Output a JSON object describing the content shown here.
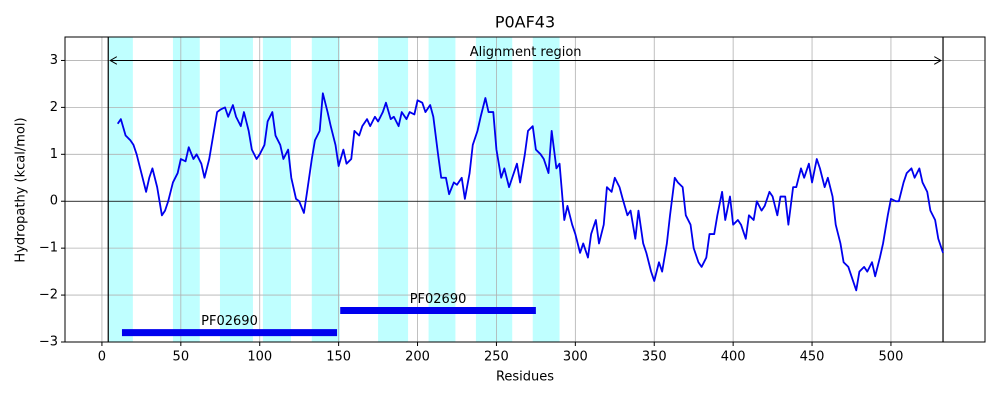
{
  "chart_data": {
    "type": "line",
    "title": "P0AF43",
    "x_label": "Residues",
    "y_label": "Hydropathy (kcal/mol)",
    "color": "#0000ee",
    "grid": true,
    "band_color": "#bfffff",
    "xlim": [
      -23.4,
      559.6
    ],
    "ylim": [
      -3,
      3.5
    ],
    "xticks": [
      0,
      50,
      100,
      150,
      200,
      250,
      300,
      350,
      400,
      450,
      500
    ],
    "yticks": [
      {
        "value": -3,
        "label": "−3"
      },
      {
        "value": -2,
        "label": "−2"
      },
      {
        "value": -1,
        "label": "−1"
      },
      0,
      1,
      2,
      3
    ],
    "regions": [
      [
        3.8,
        19.6
      ],
      [
        45,
        62
      ],
      [
        74.8,
        95.7
      ],
      [
        102,
        119.8
      ],
      [
        133,
        150.8
      ],
      [
        175,
        194
      ],
      [
        207,
        224
      ],
      [
        237,
        260
      ],
      [
        273,
        290
      ]
    ],
    "alignment": {
      "label": "Alignment region",
      "start": 4,
      "end": 533,
      "y": 3
    },
    "domains": [
      {
        "label": "PF02690",
        "start": 12.7,
        "end": 149,
        "y": -2.8
      },
      {
        "label": "PF02690",
        "start": 151,
        "end": 275,
        "y": -2.33
      }
    ],
    "x": [
      10,
      12,
      15,
      18,
      20,
      22,
      25,
      28,
      30,
      32,
      35,
      38,
      40,
      42,
      45,
      48,
      50,
      53,
      55,
      58,
      60,
      63,
      65,
      68,
      70,
      73,
      75,
      78,
      80,
      83,
      85,
      88,
      90,
      93,
      95,
      98,
      100,
      103,
      105,
      108,
      110,
      113,
      115,
      118,
      120,
      123,
      125,
      128,
      130,
      133,
      135,
      138,
      140,
      143,
      145,
      148,
      150,
      153,
      155,
      158,
      160,
      163,
      165,
      168,
      170,
      173,
      175,
      178,
      180,
      183,
      185,
      188,
      190,
      193,
      195,
      198,
      200,
      203,
      205,
      208,
      210,
      213,
      215,
      218,
      220,
      223,
      225,
      228,
      230,
      233,
      235,
      238,
      240,
      243,
      245,
      248,
      250,
      253,
      255,
      258,
      260,
      263,
      265,
      268,
      270,
      273,
      275,
      278,
      280,
      283,
      285,
      288,
      290,
      293,
      295,
      298,
      300,
      303,
      305,
      308,
      310,
      313,
      315,
      318,
      320,
      323,
      325,
      328,
      330,
      333,
      335,
      338,
      340,
      343,
      345,
      348,
      350,
      353,
      355,
      358,
      360,
      363,
      365,
      368,
      370,
      373,
      375,
      378,
      380,
      383,
      385,
      388,
      390,
      393,
      395,
      398,
      400,
      403,
      405,
      408,
      410,
      413,
      415,
      418,
      420,
      423,
      425,
      428,
      430,
      433,
      435,
      438,
      440,
      443,
      445,
      448,
      450,
      453,
      455,
      458,
      460,
      463,
      465,
      468,
      470,
      473,
      475,
      478,
      480,
      483,
      485,
      488,
      490,
      493,
      495,
      498,
      500,
      503,
      505,
      508,
      510,
      513,
      515,
      518,
      520,
      523,
      525,
      528,
      530,
      533
    ],
    "values": [
      1.65,
      1.75,
      1.4,
      1.3,
      1.2,
      1.0,
      0.6,
      0.2,
      0.5,
      0.7,
      0.3,
      -0.3,
      -0.2,
      0,
      0.4,
      0.6,
      0.9,
      0.85,
      1.15,
      0.9,
      1.0,
      0.8,
      0.5,
      0.9,
      1.3,
      1.9,
      1.95,
      2.0,
      1.8,
      2.05,
      1.8,
      1.6,
      1.9,
      1.5,
      1.1,
      0.9,
      1.0,
      1.2,
      1.7,
      1.9,
      1.4,
      1.2,
      0.9,
      1.1,
      0.5,
      0.05,
      0,
      -0.25,
      0.2,
      0.9,
      1.3,
      1.5,
      2.3,
      1.9,
      1.6,
      1.2,
      0.75,
      1.1,
      0.8,
      0.9,
      1.5,
      1.4,
      1.6,
      1.75,
      1.6,
      1.8,
      1.7,
      1.9,
      2.1,
      1.75,
      1.8,
      1.6,
      1.9,
      1.75,
      1.9,
      1.85,
      2.15,
      2.1,
      1.9,
      2.05,
      1.8,
      1.0,
      0.5,
      0.5,
      0.15,
      0.4,
      0.35,
      0.5,
      0.05,
      0.6,
      1.2,
      1.5,
      1.8,
      2.2,
      1.9,
      1.9,
      1.1,
      0.5,
      0.7,
      0.3,
      0.5,
      0.8,
      0.4,
      1.0,
      1.5,
      1.6,
      1.1,
      1.0,
      0.9,
      0.6,
      1.5,
      0.7,
      0.8,
      -0.4,
      -0.1,
      -0.5,
      -0.7,
      -1.1,
      -0.9,
      -1.2,
      -0.7,
      -0.4,
      -0.9,
      -0.5,
      0.3,
      0.2,
      0.5,
      0.3,
      0.05,
      -0.3,
      -0.2,
      -0.8,
      -0.2,
      -0.9,
      -1.1,
      -1.5,
      -1.7,
      -1.3,
      -1.5,
      -0.9,
      -0.3,
      0.5,
      0.4,
      0.3,
      -0.3,
      -0.5,
      -1.0,
      -1.3,
      -1.4,
      -1.2,
      -0.7,
      -0.7,
      -0.3,
      0.2,
      -0.4,
      0.1,
      -0.5,
      -0.4,
      -0.5,
      -0.8,
      -0.3,
      -0.4,
      0,
      -0.2,
      -0.1,
      0.2,
      0.1,
      -0.3,
      0.1,
      0.1,
      -0.5,
      0.3,
      0.3,
      0.7,
      0.5,
      0.8,
      0.4,
      0.9,
      0.7,
      0.3,
      0.5,
      0.1,
      -0.5,
      -0.9,
      -1.3,
      -1.4,
      -1.6,
      -1.9,
      -1.5,
      -1.4,
      -1.5,
      -1.3,
      -1.6,
      -1.2,
      -0.9,
      -0.3,
      0.05,
      0,
      0,
      0.4,
      0.6,
      0.7,
      0.5,
      0.7,
      0.4,
      0.2,
      -0.2,
      -0.4,
      -0.8,
      -1.1
    ]
  }
}
